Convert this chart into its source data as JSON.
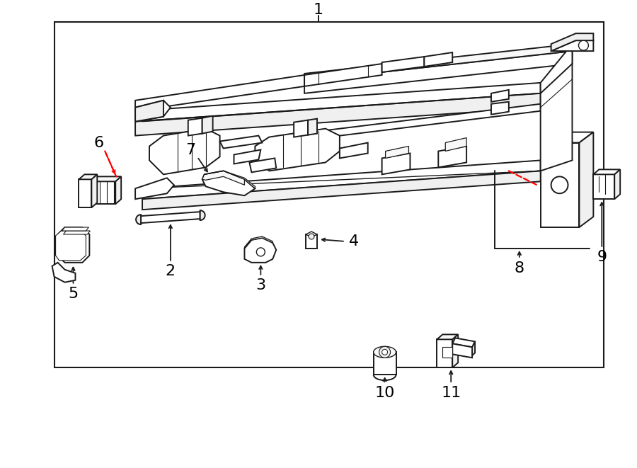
{
  "bg_color": "#ffffff",
  "line_color": "#1a1a1a",
  "red_color": "#ff0000",
  "fig_width": 9.0,
  "fig_height": 6.61,
  "dpi": 100
}
